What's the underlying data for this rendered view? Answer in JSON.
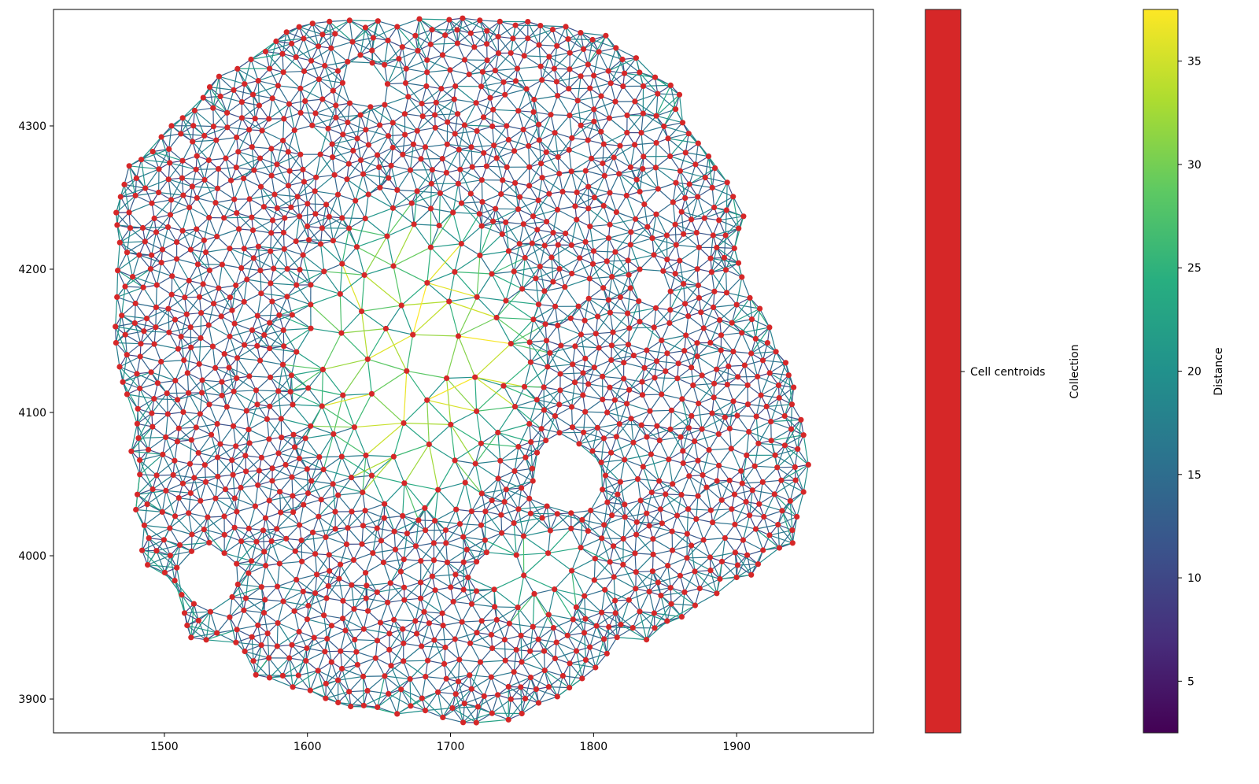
{
  "chart_data": {
    "type": "scatter",
    "subtype": "spatial-graph",
    "title": "",
    "xlabel": "",
    "ylabel": "",
    "xlim": [
      1422.5,
      1995.6
    ],
    "ylim": [
      3876.4,
      4381.3
    ],
    "xticks": [
      "1500",
      "1600",
      "1700",
      "1800",
      "1900"
    ],
    "xtick_values": [
      1500,
      1600,
      1700,
      1800,
      1900
    ],
    "yticks": [
      "3900",
      "4000",
      "4100",
      "4200",
      "4300"
    ],
    "ytick_values": [
      3900,
      4000,
      4100,
      4200,
      4300
    ],
    "grid": false,
    "points": {
      "name": "Cell centroids",
      "color": "#d62728"
    },
    "edges": {
      "colormap": "viridis",
      "color_by": "Distance"
    },
    "colorbars": [
      {
        "label": "Collection",
        "color": "#d62728",
        "ticks": [
          "Cell centroids"
        ]
      },
      {
        "label": "Distance",
        "colormap": "viridis",
        "clim": [
          2.5,
          37.5
        ],
        "ticks": [
          "5",
          "10",
          "15",
          "20",
          "25",
          "30",
          "35"
        ],
        "tick_values": [
          5,
          10,
          15,
          20,
          25,
          30,
          35
        ]
      }
    ]
  }
}
